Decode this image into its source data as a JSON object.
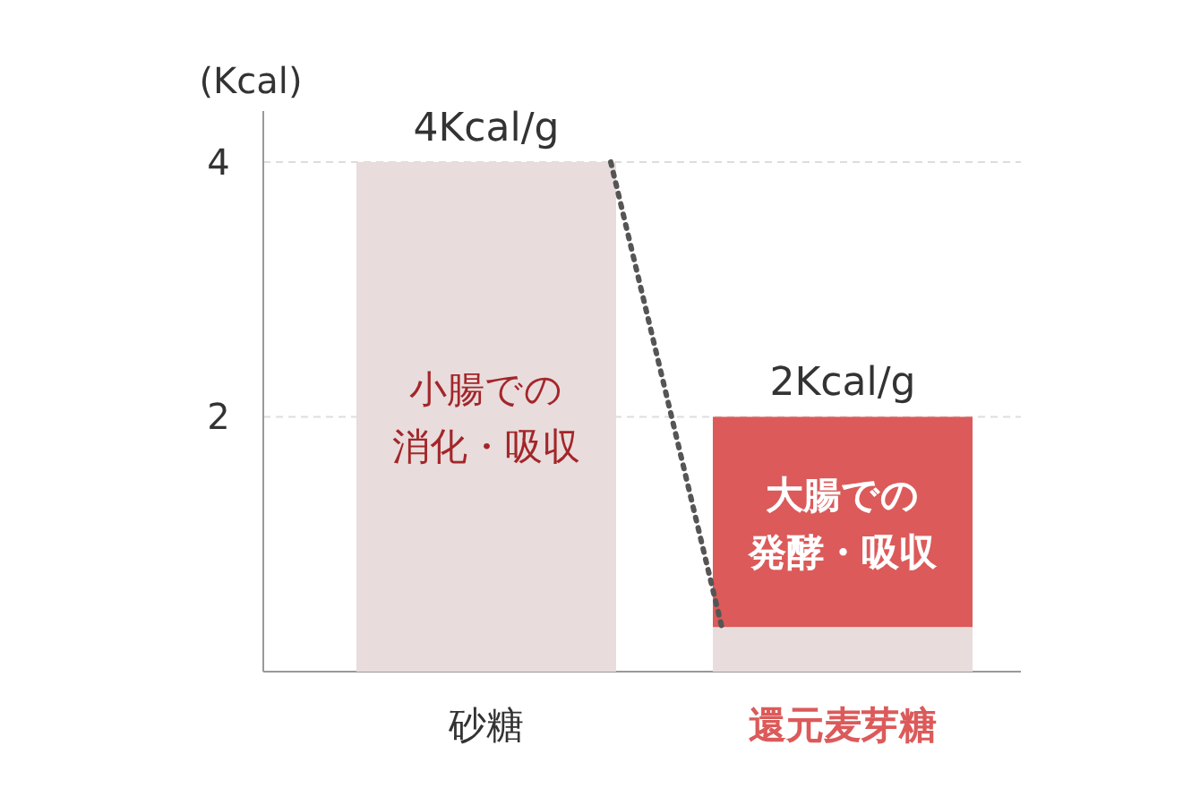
{
  "chart_data": {
    "type": "bar",
    "stacked": true,
    "ylabel": "(Kcal)",
    "categories": [
      "砂糖",
      "還元麦芽糖"
    ],
    "series": [
      {
        "name": "小腸での消化・吸収",
        "color": "#e8dcdc",
        "values": [
          4,
          0.35
        ]
      },
      {
        "name": "大腸での発酵・吸収",
        "color": "#dc5a5a",
        "values": [
          0,
          1.65
        ]
      }
    ],
    "totals": [
      "4Kcal/g",
      "2Kcal/g"
    ],
    "ylim": [
      0,
      4.4
    ],
    "yticks": [
      2,
      4
    ],
    "grid": "y"
  }
}
